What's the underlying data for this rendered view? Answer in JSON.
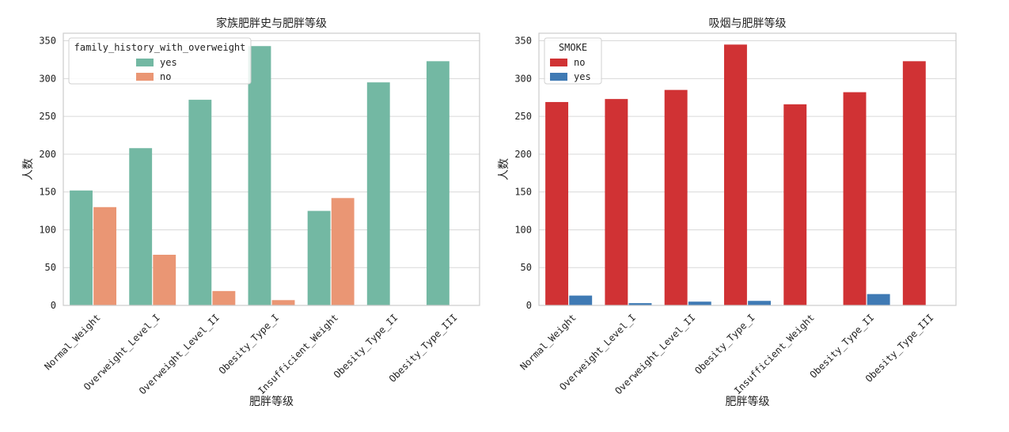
{
  "chart_data": [
    {
      "type": "bar",
      "title": "家族肥胖史与肥胖等级",
      "xlabel": "肥胖等级",
      "ylabel": "人数",
      "ylim": [
        0,
        360
      ],
      "yticks": [
        0,
        50,
        100,
        150,
        200,
        250,
        300,
        350
      ],
      "grid": "horizontal",
      "legend_position": "top-left",
      "legend_title": "family_history_with_overweight",
      "categories": [
        "Normal_Weight",
        "Overweight_Level_I",
        "Overweight_Level_II",
        "Obesity_Type_I",
        "Insufficient_Weight",
        "Obesity_Type_II",
        "Obesity_Type_III"
      ],
      "series": [
        {
          "name": "yes",
          "color": "#73b8a3",
          "values": [
            152,
            208,
            272,
            343,
            125,
            295,
            323
          ]
        },
        {
          "name": "no",
          "color": "#ea9674",
          "values": [
            130,
            67,
            19,
            7,
            142,
            0,
            0
          ]
        }
      ]
    },
    {
      "type": "bar",
      "title": "吸烟与肥胖等级",
      "xlabel": "肥胖等级",
      "ylabel": "人数",
      "ylim": [
        0,
        360
      ],
      "yticks": [
        0,
        50,
        100,
        150,
        200,
        250,
        300,
        350
      ],
      "grid": "horizontal",
      "legend_position": "top-left",
      "legend_title": "SMOKE",
      "categories": [
        "Normal_Weight",
        "Overweight_Level_I",
        "Overweight_Level_II",
        "Obesity_Type_I",
        "Insufficient_Weight",
        "Obesity_Type_II",
        "Obesity_Type_III"
      ],
      "series": [
        {
          "name": "no",
          "color": "#d03234",
          "values": [
            269,
            273,
            285,
            345,
            266,
            282,
            323
          ]
        },
        {
          "name": "yes",
          "color": "#3f7ab4",
          "values": [
            13,
            3,
            5,
            6,
            0,
            15,
            0
          ]
        }
      ]
    }
  ]
}
